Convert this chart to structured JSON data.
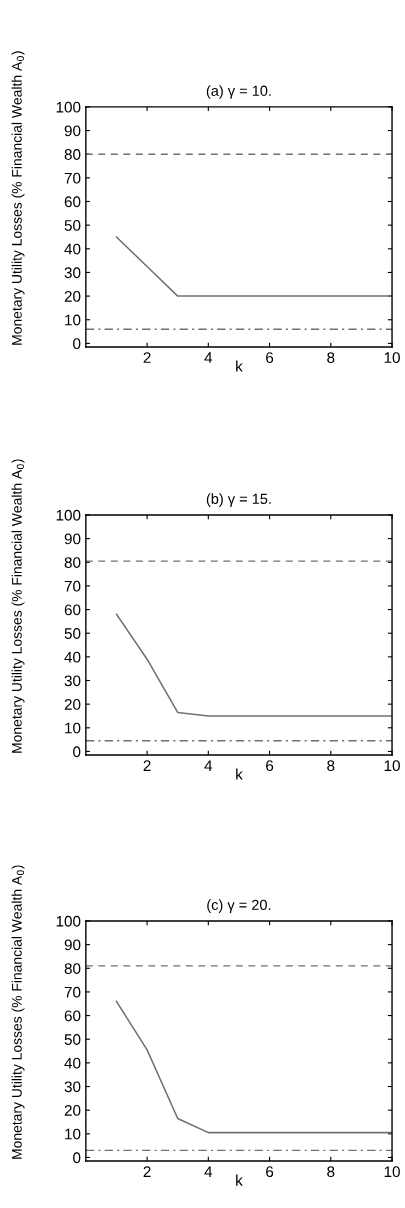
{
  "chart_data": [
    {
      "type": "line",
      "title": "(a) γ = 10.",
      "xlabel": "k",
      "ylabel": "Monetary Utility Losses (% Financial Wealth A$_{0}$)",
      "x": [
        1,
        2,
        3,
        4,
        5,
        6,
        7,
        8,
        9,
        10
      ],
      "series": [
        {
          "color": "#707070",
          "values": [
            45,
            32.5,
            20,
            20,
            20,
            20,
            20,
            20,
            20,
            20
          ]
        }
      ],
      "xlim": [
        0,
        10
      ],
      "xticks": [
        2,
        4,
        6,
        8,
        10
      ],
      "ylim": [
        -1.5,
        100
      ],
      "yticks": [
        0,
        10,
        20,
        30,
        40,
        50,
        60,
        70,
        80,
        90,
        100
      ],
      "grid": false,
      "line_style": "solid",
      "marker": "none",
      "ref_lines": [
        {
          "axis": "y",
          "value": 80,
          "color": "#707070",
          "line_style": "dashed"
        },
        {
          "axis": "y",
          "value": 6,
          "color": "#707070",
          "line_style": "dashdot"
        }
      ]
    },
    {
      "type": "line",
      "title": "(b) γ = 15.",
      "xlabel": "k",
      "ylabel": "Monetary Utility Losses (% Financial Wealth A$_{0}$)",
      "x": [
        1,
        2,
        3,
        4,
        5,
        6,
        7,
        8,
        9,
        10
      ],
      "series": [
        {
          "color": "#707070",
          "values": [
            58,
            39,
            16.5,
            15,
            15,
            15,
            15,
            15,
            15,
            15
          ]
        }
      ],
      "xlim": [
        0,
        10
      ],
      "xticks": [
        2,
        4,
        6,
        8,
        10
      ],
      "ylim": [
        -1.5,
        100
      ],
      "yticks": [
        0,
        10,
        20,
        30,
        40,
        50,
        60,
        70,
        80,
        90,
        100
      ],
      "grid": false,
      "line_style": "solid",
      "marker": "none",
      "ref_lines": [
        {
          "axis": "y",
          "value": 80.5,
          "color": "#707070",
          "line_style": "dashed"
        },
        {
          "axis": "y",
          "value": 4.5,
          "color": "#707070",
          "line_style": "dashdot"
        }
      ]
    },
    {
      "type": "line",
      "title": "(c) γ = 20.",
      "xlabel": "k",
      "ylabel": "Monetary Utility Losses (% Financial Wealth A$_{0}$)",
      "x": [
        1,
        2,
        3,
        4,
        5,
        6,
        7,
        8,
        9,
        10
      ],
      "series": [
        {
          "color": "#707070",
          "values": [
            66,
            45.5,
            16.5,
            10.5,
            10.5,
            10.5,
            10.5,
            10.5,
            10.5,
            10.5
          ]
        }
      ],
      "xlim": [
        0,
        10
      ],
      "xticks": [
        2,
        4,
        6,
        8,
        10
      ],
      "ylim": [
        -1.5,
        100
      ],
      "yticks": [
        0,
        10,
        20,
        30,
        40,
        50,
        60,
        70,
        80,
        90,
        100
      ],
      "grid": false,
      "line_style": "solid",
      "marker": "none",
      "ref_lines": [
        {
          "axis": "y",
          "value": 81,
          "color": "#707070",
          "line_style": "dashed"
        },
        {
          "axis": "y",
          "value": 3,
          "color": "#707070",
          "line_style": "dashdot"
        }
      ]
    }
  ]
}
